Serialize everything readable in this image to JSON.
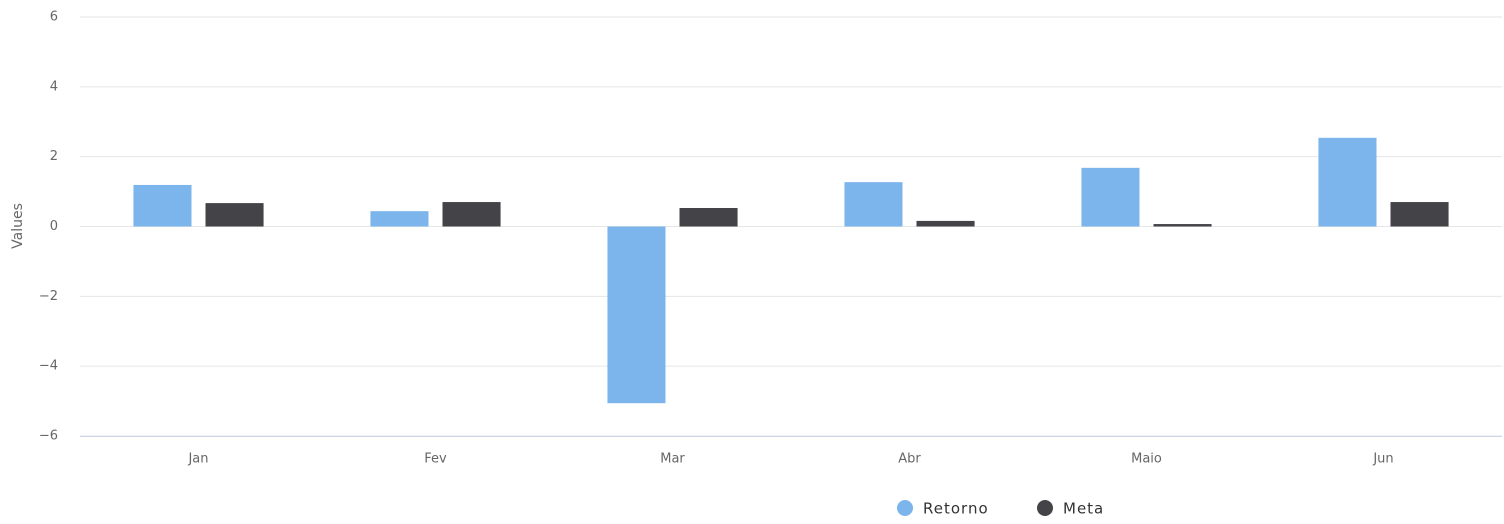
{
  "chart_data": {
    "type": "bar",
    "y_label": "Values",
    "categories": [
      "Jan",
      "Fev",
      "Mar",
      "Abr",
      "Maio",
      "Jun"
    ],
    "series": [
      {
        "name": "Retorno",
        "color": "#7cb5ec",
        "values": [
          1.19,
          0.44,
          -5.06,
          1.27,
          1.68,
          2.54
        ]
      },
      {
        "name": "Meta",
        "color": "#434348",
        "values": [
          0.67,
          0.7,
          0.53,
          0.16,
          0.07,
          0.7
        ]
      }
    ],
    "ylim": [
      -6,
      6
    ],
    "yticks": [
      {
        "value": -6,
        "label": "−6"
      },
      {
        "value": -4,
        "label": "−4"
      },
      {
        "value": -2,
        "label": "−2"
      },
      0,
      2,
      4,
      6
    ],
    "grid": true,
    "legend": "bottom"
  }
}
